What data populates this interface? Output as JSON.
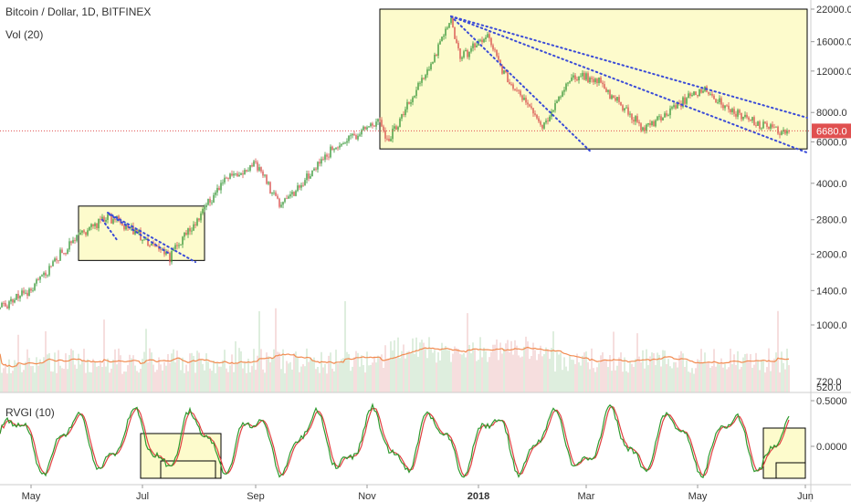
{
  "header": {
    "title": "Bitcoin / Dollar, 1D, BITFINEX",
    "volume_label": "Vol (20)",
    "rvgi_label": "RVGI (10)"
  },
  "colors": {
    "up": "#3c9a3c",
    "down": "#d9534f",
    "last_price_line": "#e05050",
    "trend_lines": "#3a4bd8",
    "box_fill": "#fdfbcc",
    "volume_up": "#cfe6cf",
    "volume_down": "#f3d0d0",
    "volume_ma": "#f28b50",
    "rvgi_fast": "#2e9a2e",
    "rvgi_slow": "#e04040"
  },
  "chart_data": [
    {
      "type": "candlestick",
      "scale": "log",
      "title": "Bitcoin / Dollar, 1D, BITFINEX",
      "last_price": "6680.0",
      "ylim": [
        900,
        22500
      ],
      "y_ticks": [
        "22000.0",
        "16000.0",
        "12000.0",
        "8000.0",
        "6000.0",
        "4000.0",
        "2800.0",
        "2000.0",
        "1400.0",
        "1000.0"
      ],
      "x_ticks": [
        "May",
        "Jul",
        "Sep",
        "Nov",
        "2018",
        "Mar",
        "May",
        "Jun"
      ],
      "anchors": [
        {
          "date": "2017-04-14",
          "close": 1180
        },
        {
          "date": "2017-05-01",
          "close": 1420
        },
        {
          "date": "2017-05-25",
          "close": 2350
        },
        {
          "date": "2017-06-12",
          "close": 2900
        },
        {
          "date": "2017-06-27",
          "close": 2500
        },
        {
          "date": "2017-07-16",
          "close": 1950
        },
        {
          "date": "2017-07-31",
          "close": 2850
        },
        {
          "date": "2017-08-14",
          "close": 4100
        },
        {
          "date": "2017-09-01",
          "close": 4800
        },
        {
          "date": "2017-09-15",
          "close": 3200
        },
        {
          "date": "2017-10-12",
          "close": 5500
        },
        {
          "date": "2017-11-08",
          "close": 7400
        },
        {
          "date": "2017-11-12",
          "close": 5900
        },
        {
          "date": "2017-11-28",
          "close": 9900
        },
        {
          "date": "2017-12-17",
          "close": 19500
        },
        {
          "date": "2017-12-22",
          "close": 13800
        },
        {
          "date": "2018-01-06",
          "close": 16500
        },
        {
          "date": "2018-01-17",
          "close": 11000
        },
        {
          "date": "2018-02-06",
          "close": 7000
        },
        {
          "date": "2018-02-20",
          "close": 11200
        },
        {
          "date": "2018-03-05",
          "close": 11400
        },
        {
          "date": "2018-04-01",
          "close": 6800
        },
        {
          "date": "2018-04-25",
          "close": 9300
        },
        {
          "date": "2018-05-05",
          "close": 9800
        },
        {
          "date": "2018-05-28",
          "close": 7400
        },
        {
          "date": "2018-06-10",
          "close": 6800
        },
        {
          "date": "2018-06-15",
          "close": 6550
        },
        {
          "date": "2018-06-20",
          "close": 6680
        }
      ],
      "boxes": [
        {
          "from": "2017-05-27",
          "to": "2017-08-04",
          "high": 3200,
          "low": 1880
        },
        {
          "from": "2017-11-08",
          "to": "2018-06-30",
          "high": 22000,
          "low": 5600
        }
      ],
      "trend_lines": [
        {
          "from": [
            "2017-06-12",
            3000
          ],
          "to": [
            "2017-07-30",
            1850
          ]
        },
        {
          "from": [
            "2017-06-13",
            2950
          ],
          "to": [
            "2017-07-16",
            2000
          ]
        },
        {
          "from": [
            "2017-06-09",
            2800
          ],
          "to": [
            "2017-06-17",
            2300
          ]
        },
        {
          "from": [
            "2017-12-17",
            20500
          ],
          "to": [
            "2018-06-30",
            7600
          ]
        },
        {
          "from": [
            "2017-12-17",
            20500
          ],
          "to": [
            "2018-06-30",
            5400
          ]
        },
        {
          "from": [
            "2017-12-17",
            20500
          ],
          "to": [
            "2018-03-04",
            5400
          ]
        }
      ]
    },
    {
      "type": "bar",
      "title": "Vol (20)",
      "y_ticks": [
        "720.0",
        "520.0"
      ],
      "ma_period": 20
    },
    {
      "type": "line",
      "title": "RVGI (10)",
      "ylim": [
        -0.38,
        0.55
      ],
      "y_ticks": [
        "0.5000",
        "0.0000"
      ],
      "boxes": [
        {
          "from": "2017-06-30",
          "to": "2017-08-13",
          "high": 0.14,
          "low": -0.35
        },
        {
          "from": "2017-07-11",
          "to": "2017-08-10",
          "high": -0.16,
          "low": -0.35
        },
        {
          "from": "2018-06-06",
          "to": "2018-06-29",
          "high": 0.2,
          "low": -0.35
        },
        {
          "from": "2018-06-13",
          "to": "2018-06-29",
          "high": -0.18,
          "low": -0.35
        }
      ]
    }
  ]
}
